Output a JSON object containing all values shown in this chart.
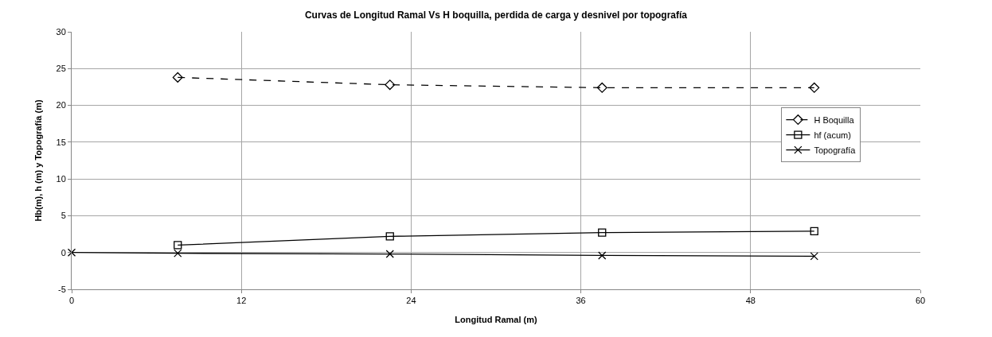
{
  "chart_data": {
    "type": "line",
    "title": "Curvas de Longitud Ramal Vs H boquilla, perdida de carga y desnivel por topografía",
    "xlabel": "Longitud Ramal (m)",
    "ylabel": "Hb(m), h (m) y Topografía (m)",
    "xlim": [
      0,
      60
    ],
    "xticks": [
      0,
      12,
      24,
      36,
      48,
      60
    ],
    "ylim": [
      -5,
      30
    ],
    "yticks": [
      -5,
      0,
      5,
      10,
      15,
      20,
      25,
      30
    ],
    "grid": true,
    "legend": "right",
    "series": [
      {
        "name": "H Boquilla",
        "color": "#000000",
        "x": [
          7.5,
          22.5,
          37.5,
          52.5
        ],
        "values": [
          23.8,
          22.8,
          22.4,
          22.4
        ],
        "marker": "diamond",
        "line_style": "dashed"
      },
      {
        "name": "hf (acum)",
        "color": "#000000",
        "x": [
          7.5,
          22.5,
          37.5,
          52.5
        ],
        "values": [
          1.0,
          2.2,
          2.7,
          2.9
        ],
        "marker": "square",
        "line_style": "solid"
      },
      {
        "name": "Topografía",
        "color": "#000000",
        "x": [
          0,
          7.5,
          22.5,
          37.5,
          52.5
        ],
        "values": [
          0,
          -0.1,
          -0.2,
          -0.4,
          -0.5
        ],
        "marker": "cross",
        "line_style": "solid"
      }
    ]
  }
}
